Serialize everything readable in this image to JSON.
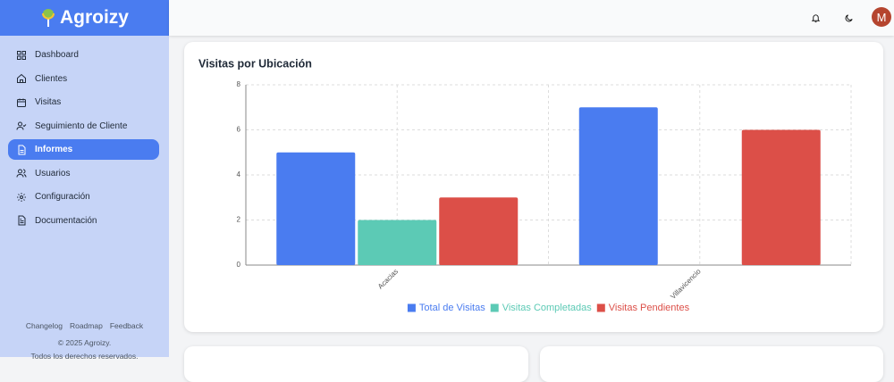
{
  "sidebar": {
    "brand": "Agroizy",
    "menu": [
      {
        "label": "Dashboard",
        "active": false
      },
      {
        "label": "Clientes",
        "active": false
      },
      {
        "label": "Visitas",
        "active": false
      },
      {
        "label": "Seguimiento de Cliente",
        "active": false
      },
      {
        "label": "Informes",
        "active": true
      },
      {
        "label": "Usuarios",
        "active": false
      },
      {
        "label": "Configuración",
        "active": false
      },
      {
        "label": "Documentación",
        "active": false
      }
    ],
    "footer": {
      "links": [
        "Changelog",
        "Roadmap",
        "Feedback"
      ],
      "copyright": "© 2025 Agroizy.",
      "rights": "Todos los derechos reservados."
    }
  },
  "header": {
    "avatar": "M"
  },
  "chart_data": {
    "type": "bar",
    "title": "Visitas por Ubicación",
    "categories": [
      "Acacias",
      "Villavicencio"
    ],
    "series": [
      {
        "name": "Total de Visitas",
        "color": "#4a7cf0",
        "values": [
          5,
          7
        ]
      },
      {
        "name": "Visitas Completadas",
        "color": "#5ccab5",
        "values": [
          2,
          0
        ]
      },
      {
        "name": "Visitas Pendientes",
        "color": "#dc4f48",
        "values": [
          3,
          6
        ]
      }
    ],
    "ylim": [
      0,
      8
    ],
    "yticks": [
      0,
      2,
      4,
      6,
      8
    ],
    "grid": true,
    "legend": "bottom"
  }
}
